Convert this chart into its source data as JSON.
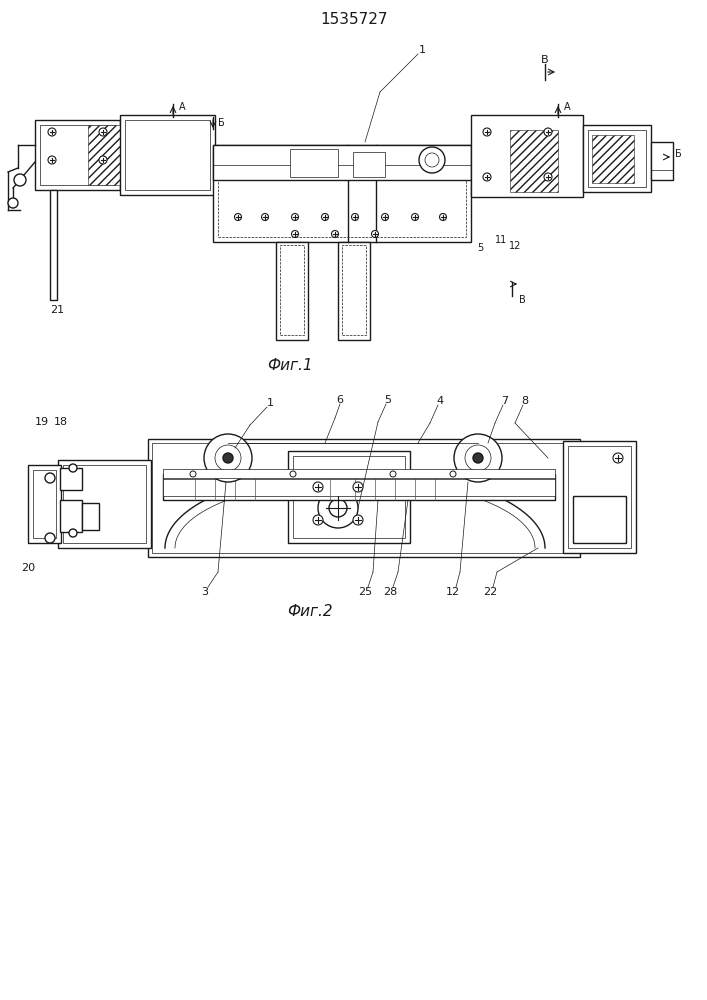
{
  "title": "1535727",
  "fig1_label": "Фиг.1",
  "fig2_label": "Фиг.2",
  "bg_color": "#ffffff",
  "line_color": "#1a1a1a"
}
